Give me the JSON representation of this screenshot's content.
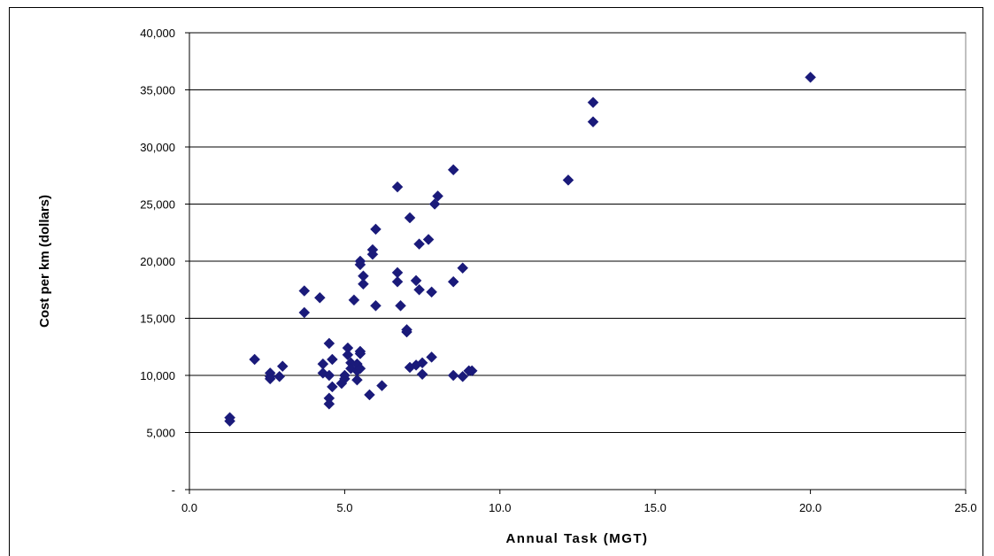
{
  "chart_data": {
    "type": "scatter",
    "title": "",
    "xlabel": "Annual Task (MGT)",
    "ylabel": "Cost per km (dollars)",
    "xlim": [
      0,
      25
    ],
    "ylim": [
      0,
      40000
    ],
    "x_ticks": [
      0,
      5,
      10,
      15,
      20,
      25
    ],
    "x_tick_labels": [
      "0.0",
      "5.0",
      "10.0",
      "15.0",
      "20.0",
      "25.0"
    ],
    "y_ticks": [
      0,
      5000,
      10000,
      15000,
      20000,
      25000,
      30000,
      35000,
      40000
    ],
    "y_tick_labels": [
      "-",
      "5,000",
      "10,000",
      "15,000",
      "20,000",
      "25,000",
      "30,000",
      "35,000",
      "40,000"
    ],
    "grid": "horizontal",
    "legend": "none",
    "marker_color": "#1a1a7a",
    "series": [
      {
        "values": [
          [
            1.3,
            6300
          ],
          [
            1.3,
            6000
          ],
          [
            2.1,
            11400
          ],
          [
            2.6,
            10200
          ],
          [
            2.6,
            9900
          ],
          [
            2.6,
            9700
          ],
          [
            2.9,
            9900
          ],
          [
            3.0,
            10800
          ],
          [
            3.7,
            17400
          ],
          [
            3.7,
            15500
          ],
          [
            4.2,
            16800
          ],
          [
            4.3,
            11000
          ],
          [
            4.3,
            10200
          ],
          [
            4.5,
            12800
          ],
          [
            4.6,
            11400
          ],
          [
            4.5,
            10000
          ],
          [
            4.6,
            9000
          ],
          [
            4.5,
            8000
          ],
          [
            4.5,
            7500
          ],
          [
            4.9,
            9300
          ],
          [
            5.0,
            10000
          ],
          [
            5.0,
            9700
          ],
          [
            5.1,
            12400
          ],
          [
            5.1,
            11800
          ],
          [
            5.2,
            11100
          ],
          [
            5.2,
            10600
          ],
          [
            5.3,
            16600
          ],
          [
            5.4,
            11000
          ],
          [
            5.4,
            10400
          ],
          [
            5.4,
            9600
          ],
          [
            5.5,
            20000
          ],
          [
            5.5,
            19700
          ],
          [
            5.5,
            12100
          ],
          [
            5.5,
            11900
          ],
          [
            5.5,
            10600
          ],
          [
            5.6,
            18700
          ],
          [
            5.6,
            18000
          ],
          [
            5.8,
            8300
          ],
          [
            5.9,
            21000
          ],
          [
            5.9,
            20600
          ],
          [
            6.0,
            22800
          ],
          [
            6.0,
            16100
          ],
          [
            6.2,
            9100
          ],
          [
            6.7,
            26500
          ],
          [
            6.7,
            19000
          ],
          [
            6.7,
            18200
          ],
          [
            6.8,
            16100
          ],
          [
            7.0,
            14000
          ],
          [
            7.0,
            13800
          ],
          [
            7.1,
            23800
          ],
          [
            7.1,
            10700
          ],
          [
            7.3,
            18300
          ],
          [
            7.3,
            10900
          ],
          [
            7.4,
            21500
          ],
          [
            7.4,
            17500
          ],
          [
            7.5,
            11100
          ],
          [
            7.5,
            10100
          ],
          [
            7.7,
            21900
          ],
          [
            7.8,
            11600
          ],
          [
            7.8,
            17300
          ],
          [
            7.9,
            25000
          ],
          [
            8.0,
            25700
          ],
          [
            8.5,
            28000
          ],
          [
            8.5,
            18200
          ],
          [
            8.5,
            10000
          ],
          [
            8.8,
            19400
          ],
          [
            8.8,
            9900
          ],
          [
            9.0,
            10400
          ],
          [
            9.1,
            10400
          ],
          [
            12.2,
            27100
          ],
          [
            13.0,
            33900
          ],
          [
            13.0,
            32200
          ],
          [
            20.0,
            36100
          ]
        ]
      }
    ]
  }
}
